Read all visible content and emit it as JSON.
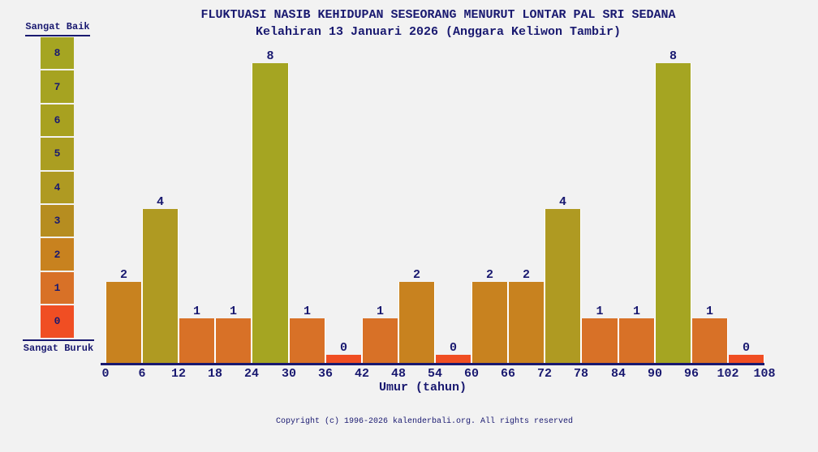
{
  "title": "FLUKTUASI NASIB KEHIDUPAN SESEORANG MENURUT LONTAR PAL SRI SEDANA",
  "subtitle": "Kelahiran 13 Januari 2026 (Anggara Keliwon Tambir)",
  "legend": {
    "top_label": "Sangat Baik",
    "bottom_label": "Sangat Buruk",
    "levels": [
      {
        "value": "8",
        "color": "#a5a522"
      },
      {
        "value": "7",
        "color": "#a6a321"
      },
      {
        "value": "6",
        "color": "#a8a120"
      },
      {
        "value": "5",
        "color": "#ab9e21"
      },
      {
        "value": "4",
        "color": "#af9a22"
      },
      {
        "value": "3",
        "color": "#b68d20"
      },
      {
        "value": "2",
        "color": "#c8821f"
      },
      {
        "value": "1",
        "color": "#d87127"
      },
      {
        "value": "0",
        "color": "#f04e23"
      }
    ]
  },
  "chart_data": {
    "type": "bar",
    "title": "FLUKTUASI NASIB KEHIDUPAN SESEORANG MENURUT LONTAR PAL SRI SEDANA",
    "subtitle": "Kelahiran 13 Januari 2026 (Anggara Keliwon Tambir)",
    "xlabel": "Umur (tahun)",
    "ylabel": "",
    "ylim": [
      0,
      8
    ],
    "grid": false,
    "legend_position": "left",
    "x_boundaries": [
      0,
      6,
      12,
      18,
      24,
      30,
      36,
      42,
      48,
      54,
      60,
      66,
      72,
      78,
      84,
      90,
      96,
      102,
      108
    ],
    "categories": [
      "0-6",
      "6-12",
      "12-18",
      "18-24",
      "24-30",
      "30-36",
      "36-42",
      "42-48",
      "48-54",
      "54-60",
      "60-66",
      "66-72",
      "72-78",
      "78-84",
      "84-90",
      "90-96",
      "96-102",
      "102-108"
    ],
    "values": [
      2,
      4,
      1,
      1,
      8,
      1,
      0,
      1,
      2,
      0,
      2,
      2,
      4,
      1,
      1,
      8,
      1,
      0
    ],
    "value_color_scale": {
      "0": "#f04e23",
      "1": "#d87127",
      "2": "#c8821f",
      "3": "#b68d20",
      "4": "#af9a22",
      "5": "#ab9e21",
      "6": "#a8a120",
      "7": "#a6a321",
      "8": "#a5a522"
    }
  },
  "footer": "Copyright (c) 1996-2026 kalenderbali.org. All rights reserved",
  "colors": {
    "text_navy": "#191970",
    "background": "#f2f2f2",
    "bar_separator": "#ffffff"
  }
}
